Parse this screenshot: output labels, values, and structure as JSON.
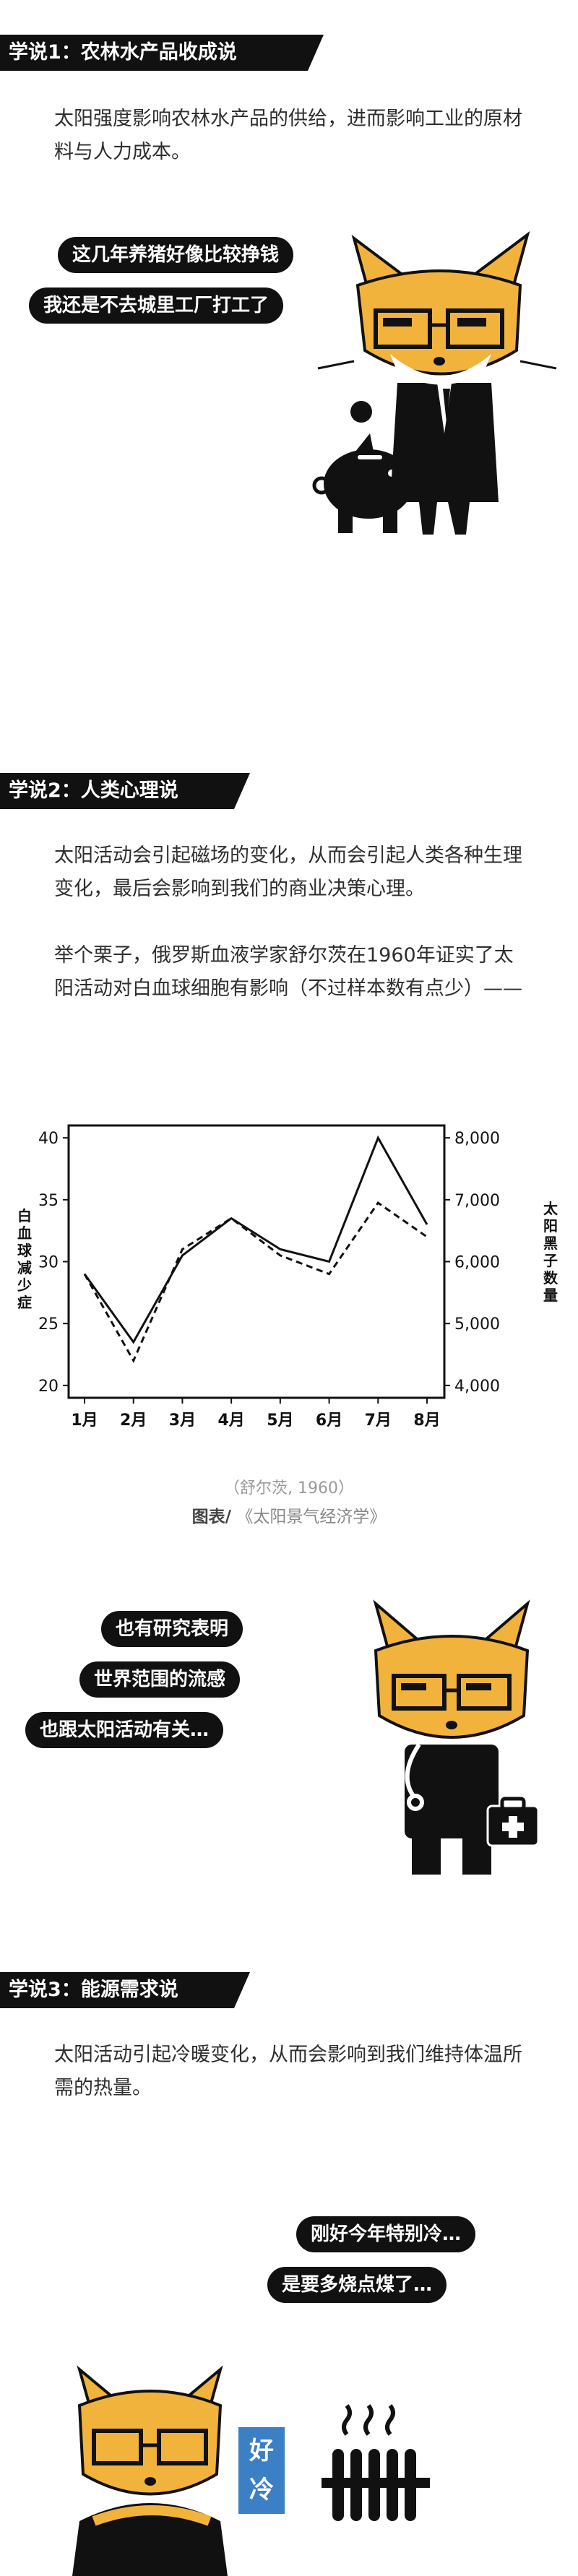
{
  "sections": [
    {
      "tag": "学说1：农林水产品收成说",
      "paragraphs": [
        "太阳强度影响农林水产品的供给，进而影响工业的原材料与人力成本。"
      ],
      "bubbles": [
        "这几年养猪好像比较挣钱",
        "我还是不去城里工厂打工了"
      ]
    },
    {
      "tag": "学说2：人类心理说",
      "paragraphs": [
        "太阳活动会引起磁场的变化，从而会引起人类各种生理变化，最后会影响到我们的商业决策心理。",
        "举个栗子，俄罗斯血液学家舒尔茨在1960年证实了太阳活动对白血球细胞有影响（不过样本数有点少）——"
      ],
      "bubbles": [
        "也有研究表明",
        "世界范围的流感",
        "也跟太阳活动有关…"
      ]
    },
    {
      "tag": "学说3：能源需求说",
      "paragraphs": [
        "太阳活动引起冷暖变化，从而会影响到我们维持体温所需的热量。"
      ],
      "bubbles": [
        "刚好今年特别冷…",
        "是要多烧点煤了…"
      ],
      "sign": "好冷"
    }
  ],
  "chart_source": "（舒尔茨, 1960）",
  "chart_caption_label": "图表/",
  "chart_caption_title": "《太阳景气经济学》",
  "colors": {
    "ink": "#111111",
    "fox_orange": "#f2b33d",
    "sign_blue": "#3b7fc4"
  },
  "chart_data": {
    "type": "line",
    "categories": [
      "1月",
      "2月",
      "3月",
      "4月",
      "5月",
      "6月",
      "7月",
      "8月"
    ],
    "series": [
      {
        "name": "白血球减少症",
        "axis": "left",
        "style": "solid",
        "values": [
          29,
          23.5,
          30.5,
          33.5,
          31,
          30,
          40,
          33
        ]
      },
      {
        "name": "太阳黑子数量",
        "axis": "right",
        "style": "dashed",
        "values": [
          5800,
          4400,
          6200,
          6700,
          6100,
          5800,
          6950,
          6400
        ]
      }
    ],
    "ylabel": "白血球减少症",
    "y2label": "太阳黑子数量",
    "ylim": [
      19,
      41
    ],
    "y2lim": [
      3800,
      8200
    ],
    "yticks": [
      "20",
      "25",
      "30",
      "35",
      "40"
    ],
    "y2ticks": [
      "4,000",
      "5,000",
      "6,000",
      "7,000",
      "8,000"
    ],
    "grid": false
  }
}
